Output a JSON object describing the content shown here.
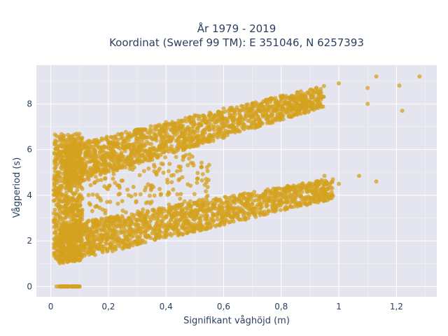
{
  "colors": {
    "marker": "#d4a21f",
    "plot_bg": "#e5e5f0",
    "grid": "#ffffff",
    "text": "#2a3f5f"
  },
  "chart_data": {
    "type": "scatter",
    "title": "År 1979 - 2019",
    "subtitle": "Koordinat (Sweref 99 TM): E 351046, N 6257393",
    "xlabel": "Signifikant våghöjd (m)",
    "ylabel": "Vågperiod (s)",
    "xlim": [
      -0.05,
      1.34
    ],
    "ylim": [
      -0.45,
      9.7
    ],
    "x_ticks": [
      0,
      0.2,
      0.4,
      0.6,
      0.8,
      1,
      1.2
    ],
    "x_tick_labels": [
      "0",
      "0,2",
      "0,4",
      "0,6",
      "0,8",
      "1",
      "1,2"
    ],
    "y_ticks": [
      0,
      2,
      4,
      6,
      8
    ],
    "y_tick_labels": [
      "0",
      "2",
      "4",
      "6",
      "8"
    ],
    "grid": true,
    "series": [
      {
        "points_sample": [
          [
            0.02,
            0.0
          ],
          [
            0.04,
            0.0
          ],
          [
            0.06,
            0.0
          ],
          [
            0.08,
            0.0
          ],
          [
            0.1,
            0.0
          ],
          [
            0.02,
            1.3
          ],
          [
            0.05,
            1.6
          ],
          [
            0.08,
            2.0
          ],
          [
            0.1,
            2.5
          ],
          [
            0.05,
            3.2
          ],
          [
            0.15,
            2.0
          ],
          [
            0.2,
            2.1
          ],
          [
            0.3,
            2.5
          ],
          [
            0.4,
            2.7
          ],
          [
            0.5,
            3.0
          ],
          [
            0.6,
            3.3
          ],
          [
            0.7,
            3.6
          ],
          [
            0.8,
            3.9
          ],
          [
            0.9,
            4.2
          ],
          [
            1.0,
            4.5
          ],
          [
            0.95,
            4.85
          ],
          [
            1.07,
            4.85
          ],
          [
            1.13,
            4.6
          ],
          [
            0.05,
            5.0
          ],
          [
            0.1,
            6.0
          ],
          [
            0.1,
            6.5
          ],
          [
            0.2,
            6.3
          ],
          [
            0.3,
            6.8
          ],
          [
            0.4,
            7.2
          ],
          [
            0.5,
            7.5
          ],
          [
            0.6,
            7.8
          ],
          [
            0.7,
            8.0
          ],
          [
            0.8,
            8.2
          ],
          [
            0.9,
            8.6
          ],
          [
            1.0,
            8.9
          ],
          [
            1.1,
            8.7
          ],
          [
            1.13,
            9.2
          ],
          [
            1.21,
            8.8
          ],
          [
            1.28,
            9.2
          ],
          [
            1.22,
            7.7
          ],
          [
            1.1,
            8.0
          ]
        ]
      }
    ]
  }
}
